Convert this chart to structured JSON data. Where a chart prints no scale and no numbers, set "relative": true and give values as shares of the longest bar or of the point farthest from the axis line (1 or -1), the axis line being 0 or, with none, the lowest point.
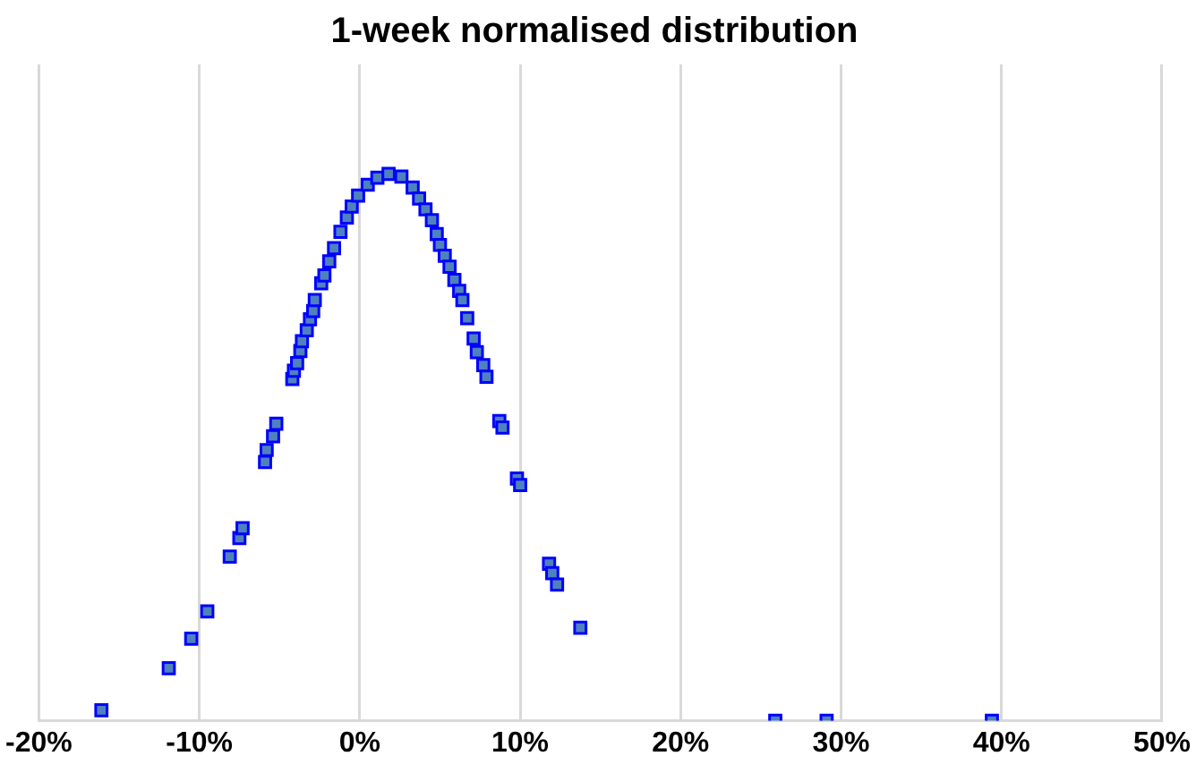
{
  "chart_data": {
    "type": "scatter",
    "title": "1-week normalised distribution",
    "relative": true,
    "xlim": [
      -20,
      50
    ],
    "xticks": [
      {
        "value": -20,
        "label": "-20%"
      },
      {
        "value": -10,
        "label": "-10%"
      },
      {
        "value": 0,
        "label": "0%"
      },
      {
        "value": 10,
        "label": "10%"
      },
      {
        "value": 20,
        "label": "20%"
      },
      {
        "value": 30,
        "label": "30%"
      },
      {
        "value": 40,
        "label": "40%"
      },
      {
        "value": 50,
        "label": "50%"
      }
    ],
    "grid": "x",
    "marker": "square",
    "legend": false,
    "series": [
      {
        "color": "#4f81bd",
        "x": [
          -16.1,
          -11.9,
          -10.5,
          -9.5,
          -8.1,
          -7.5,
          -7.3,
          -5.9,
          -5.8,
          -5.4,
          -5.2,
          -4.2,
          -4.1,
          -3.9,
          -3.7,
          -3.6,
          -3.3,
          -3.1,
          -2.9,
          -2.8,
          -2.4,
          -2.2,
          -1.9,
          -1.6,
          -1.2,
          -0.8,
          -0.5,
          -0.1,
          0.5,
          1.1,
          1.8,
          2.6,
          3.3,
          3.7,
          4.1,
          4.5,
          4.8,
          5.0,
          5.3,
          5.6,
          5.9,
          6.2,
          6.4,
          6.7,
          7.1,
          7.3,
          7.7,
          7.9,
          8.7,
          8.9,
          9.8,
          10.0,
          11.8,
          12.0,
          12.3,
          13.75,
          25.9,
          29.1,
          39.4
        ],
        "values": [
          0.019,
          0.096,
          0.15,
          0.2,
          0.3,
          0.334,
          0.352,
          0.473,
          0.495,
          0.52,
          0.543,
          0.625,
          0.64,
          0.654,
          0.676,
          0.694,
          0.714,
          0.734,
          0.749,
          0.769,
          0.8,
          0.814,
          0.84,
          0.864,
          0.894,
          0.92,
          0.94,
          0.96,
          0.98,
          0.993,
          1.0,
          0.995,
          0.975,
          0.955,
          0.935,
          0.915,
          0.89,
          0.87,
          0.85,
          0.83,
          0.806,
          0.786,
          0.769,
          0.736,
          0.699,
          0.674,
          0.65,
          0.629,
          0.548,
          0.536,
          0.443,
          0.431,
          0.287,
          0.27,
          0.249,
          0.17,
          0,
          0,
          0
        ]
      }
    ]
  }
}
